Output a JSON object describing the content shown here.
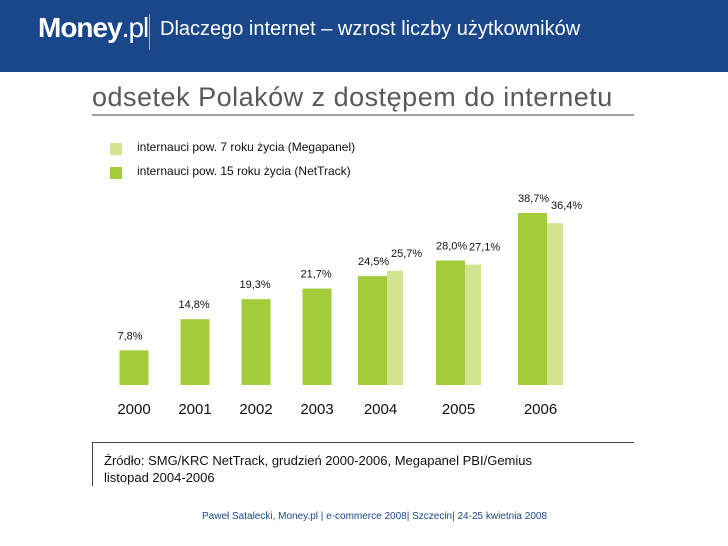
{
  "header": {
    "logo_main": "Money",
    "logo_suffix": ".pl",
    "title": "Dlaczego internet – wzrost liczby użytkowników"
  },
  "colors": {
    "header_bg": "#1a468a",
    "nettrack": "#a3cc3a",
    "megapanel": "#d2e48f"
  },
  "chart_data": {
    "type": "bar",
    "title": "odsetek Polaków z dostępem do internetu",
    "categories": [
      "2000",
      "2001",
      "2002",
      "2003",
      "2004",
      "2005",
      "2006"
    ],
    "series": [
      {
        "name": "internauci pow. 15 roku życia (NetTrack)",
        "values": [
          7.8,
          14.8,
          19.3,
          21.7,
          24.5,
          28.0,
          38.7
        ],
        "labels": [
          "7,8%",
          "14,8%",
          "19,3%",
          "21,7%",
          "24,5%",
          "28,0%",
          "38,7%"
        ]
      },
      {
        "name": "internauci pow. 7 roku życia (Megapanel)",
        "values": [
          null,
          null,
          null,
          null,
          25.7,
          27.1,
          36.4
        ],
        "labels": [
          null,
          null,
          null,
          null,
          "25,7%",
          "27,1%",
          "36,4%"
        ]
      }
    ],
    "legend": [
      "internauci pow. 7 roku życia (Megapanel)",
      "internauci pow. 15 roku życia (NetTrack)"
    ],
    "xlabel": "",
    "ylabel": "",
    "ylim": [
      0,
      40
    ],
    "grid": false,
    "legend_position": "top-left"
  },
  "source": {
    "line1": "Źródło: SMG/KRC NetTrack, grudzień 2000-2006, Megapanel PBI/Gemius",
    "line2": "listopad 2004-2006"
  },
  "footer": {
    "text": "Paweł Satalecki, Money.pl | e-commerce 2008| Szczecin| 24-25 kwietnia 2008"
  }
}
